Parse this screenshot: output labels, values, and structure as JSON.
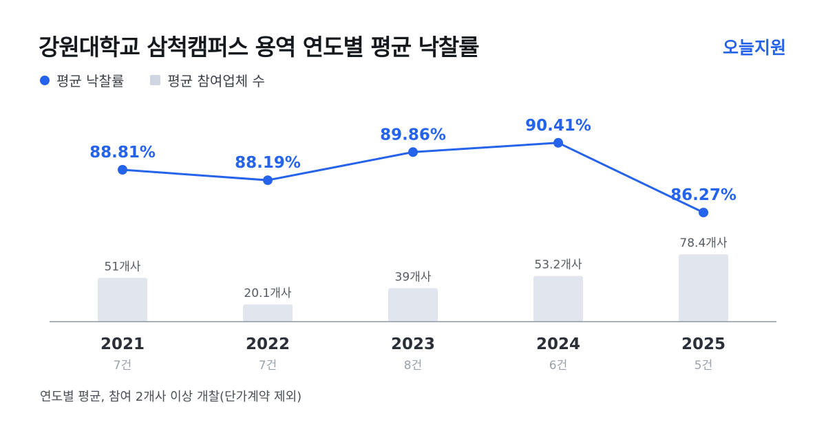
{
  "header": {
    "title": "강원대학교 삼척캠퍼스 용역 연도별 평균 낙찰률",
    "brand": "오늘지원"
  },
  "legend": {
    "rate_label": "평균 낙찰률",
    "bidders_label": "평균 참여업체 수"
  },
  "footnote": "연도별 평균, 참여 2개사 이상 개찰(단가계약 제외)",
  "colors": {
    "accent": "#2563eb",
    "bar": "#e1e6ee",
    "axis": "#8d95a1",
    "year_text": "#2b3038",
    "count_text": "#9aa1ab",
    "bar_label": "#555b63"
  },
  "chart_data": {
    "type": "bar+line",
    "categories": [
      "2021",
      "2022",
      "2023",
      "2024",
      "2025"
    ],
    "sub_labels": [
      "7건",
      "7건",
      "8건",
      "6건",
      "5건"
    ],
    "series": [
      {
        "name": "평균 낙찰률",
        "type": "line",
        "values": [
          88.81,
          88.19,
          89.86,
          90.41,
          86.27
        ],
        "labels": [
          "88.81%",
          "88.19%",
          "89.86%",
          "90.41%",
          "86.27%"
        ]
      },
      {
        "name": "평균 참여업체 수",
        "type": "bar",
        "values": [
          51,
          20.1,
          39,
          53.2,
          78.4
        ],
        "labels": [
          "51개사",
          "20.1개사",
          "39개사",
          "53.2개사",
          "78.4개사"
        ]
      }
    ],
    "grid": false,
    "legend_position": "top-left"
  }
}
